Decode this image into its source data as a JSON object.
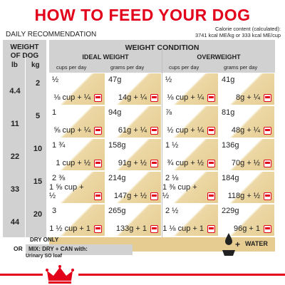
{
  "title": "HOW TO FEED YOUR DOG",
  "daily_recommendation": "DAILY RECOMMENDATION",
  "calorie_line1": "Calorie content (calculated):",
  "calorie_line2": "3741 kcal ME/kg or 333 kcal ME/cup",
  "weight_of_dog": "WEIGHT OF DOG",
  "unit_lb": "lb",
  "unit_kg": "kg",
  "weight_condition": "WEIGHT CONDITION",
  "ideal_weight": "IDEAL WEIGHT",
  "overweight": "OVERWEIGHT",
  "cups_per_day": "cups per day",
  "grams_per_day": "grams per day",
  "rows": [
    {
      "lb": "4.4",
      "kg": "2",
      "i_cups": "½",
      "i_mix_cups": "⅛ cup + ¼",
      "i_grams": "47g",
      "i_mix_grams": "14g + ¼",
      "o_cups": "½",
      "o_mix_cups": "⅛ cup + ¼",
      "o_grams": "41g",
      "o_mix_grams": "8g + ¼"
    },
    {
      "lb": "11",
      "kg": "5",
      "i_cups": "1",
      "i_mix_cups": "⅝ cup + ¼",
      "i_grams": "94g",
      "i_mix_grams": "61g + ¼",
      "o_cups": "⅞",
      "o_mix_cups": "½ cup + ¼",
      "o_grams": "81g",
      "o_mix_grams": "48g + ¼"
    },
    {
      "lb": "22",
      "kg": "10",
      "i_cups": "1 ¾",
      "i_mix_cups": "1 cup + ½",
      "i_grams": "158g",
      "i_mix_grams": "91g + ½",
      "o_cups": "1 ½",
      "o_mix_cups": "¾ cup + ½",
      "o_grams": "136g",
      "o_mix_grams": "70g + ½"
    },
    {
      "lb": "33",
      "kg": "15",
      "i_cups": "2 ⅜",
      "i_mix_cups": "1 ⅝ cup + ½",
      "i_grams": "214g",
      "i_mix_grams": "147g + ½",
      "o_cups": "2 ⅛",
      "o_mix_cups": "1 ⅜ cup + ½",
      "o_grams": "184g",
      "o_mix_grams": "118g + ½"
    },
    {
      "lb": "44",
      "kg": "20",
      "i_cups": "3",
      "i_mix_cups": "1 ½ cup + 1",
      "i_grams": "265g",
      "i_mix_grams": "133g + 1",
      "o_cups": "2 ½",
      "o_mix_cups": "1 ⅛ cup + 1",
      "o_grams": "229g",
      "o_mix_grams": "96g + 1"
    }
  ],
  "legend_dry": "DRY ONLY",
  "legend_or": "OR",
  "legend_mix": "MIX: DRY + CAN with:",
  "legend_urinary": "Urinary SO loaf",
  "water_label": "WATER",
  "colors": {
    "brand_red": "#e2001a",
    "dry_fill": "#e6cc91",
    "header_grey": "#d1d1d1"
  },
  "icons": [
    "can-icon",
    "water-bowl-icon",
    "royal-canin-crown-logo"
  ]
}
